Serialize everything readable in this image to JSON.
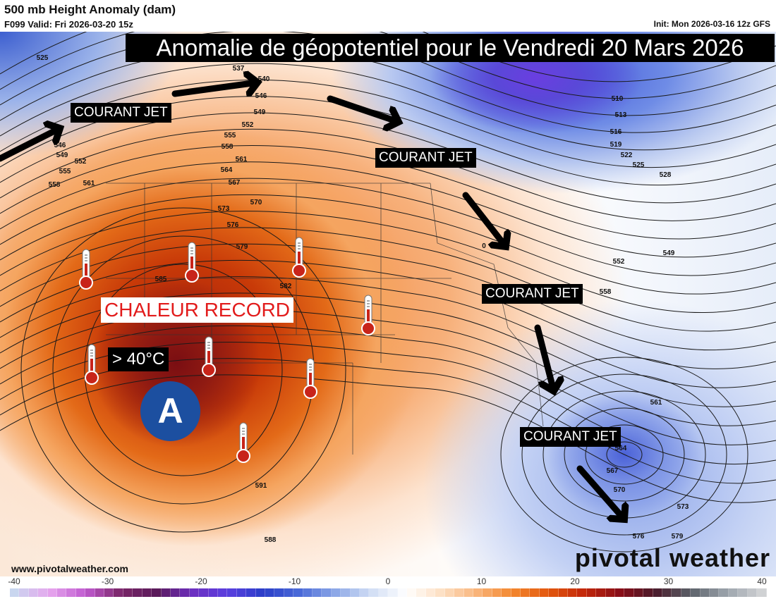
{
  "header": {
    "title": "500 mb Height Anomaly (dam)",
    "valid": "F099 Valid: Fri 2026-03-20 15z",
    "init": "Init: Mon 2026-03-16 12z GFS"
  },
  "overlay": {
    "title": "Anomalie de géopotentiel pour le Vendredi 20 Mars 2026",
    "jet_labels": [
      "COURANT JET",
      "COURANT JET",
      "COURANT JET",
      "COURANT JET"
    ],
    "record": "CHALEUR RECORD",
    "temperature": "> 40°C",
    "high_pressure": "A",
    "thermometer_count": 8
  },
  "contour_labels": [
    "525",
    "537",
    "540",
    "546",
    "549",
    "552",
    "555",
    "558",
    "561",
    "564",
    "567",
    "570",
    "573",
    "576",
    "579",
    "582",
    "585",
    "591",
    "588",
    "546",
    "549",
    "552",
    "555",
    "558",
    "561",
    "510",
    "513",
    "516",
    "519",
    "522",
    "525",
    "528",
    "549",
    "552",
    "558",
    "561",
    "564",
    "567",
    "570",
    "573",
    "576",
    "579",
    "0"
  ],
  "footer": {
    "website": "www.pivotalweather.com",
    "brand": "pivotal weather"
  },
  "colorbar": {
    "ticks": [
      "-40",
      "-30",
      "-20",
      "-10",
      "0",
      "10",
      "20",
      "30",
      "40"
    ],
    "min": -40,
    "max": 40,
    "stops": [
      "#c9d6ef",
      "#e6a6ee",
      "#c05bd0",
      "#7a2668",
      "#5a1a5a",
      "#6d2fc0",
      "#5a3fe0",
      "#2a3ec8",
      "#4a6ad8",
      "#8aa6e6",
      "#cfdcf4",
      "#ffffff",
      "#fde0c4",
      "#f9b47a",
      "#f3872e",
      "#e3580e",
      "#c3280a",
      "#8a0e18",
      "#4a1a2a",
      "#5a6068",
      "#9aa2aa",
      "#d0d2d4"
    ]
  },
  "colors": {
    "jet_box": "#000000",
    "record_text": "#e21b1b",
    "high_circle": "#1c4fa0"
  }
}
